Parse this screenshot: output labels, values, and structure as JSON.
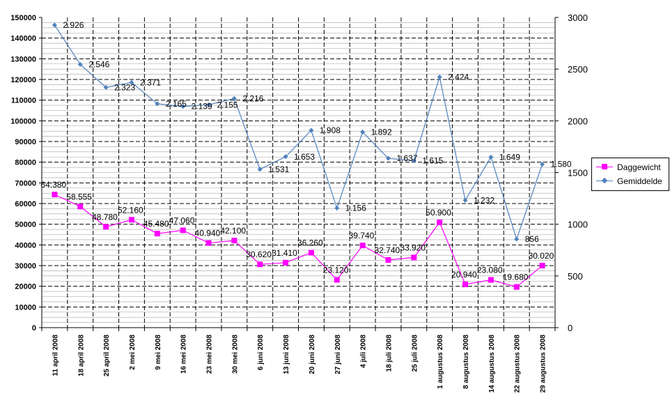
{
  "chart_data": {
    "type": "line",
    "categories": [
      "11 april 2008",
      "18 april 2008",
      "25 april 2008",
      "2 mei 2008",
      "9 mei 2008",
      "16 mei 2008",
      "23 mei 2008",
      "30 mei 2008",
      "6 juni 2008",
      "13 juni 2008",
      "20 juni 2008",
      "27 juni 2008",
      "4 juli 2008",
      "18 juli 2008",
      "25 juli 2008",
      "1 augustus 2008",
      "8 augustus 2008",
      "14 augustus 2008",
      "22 augustus 2008",
      "29 augustus 2008"
    ],
    "series": [
      {
        "name": "Daggewicht",
        "axis": "left",
        "color": "#ff00ff",
        "marker": "square",
        "values": [
          64380,
          58555,
          48780,
          52160,
          45480,
          47060,
          40940,
          42100,
          30620,
          31410,
          36260,
          23120,
          39740,
          32740,
          33920,
          50900,
          20940,
          23080,
          19680,
          30020
        ],
        "labels": [
          "64.380",
          "58.555",
          "48.780",
          "52.160",
          "45.480",
          "47.060",
          "40.940",
          "42.100",
          "30.620",
          "31.410",
          "36.260",
          "23.120",
          "39.740",
          "32.740",
          "33.920",
          "50.900",
          "20.940",
          "23.080",
          "19.680",
          "30.020"
        ]
      },
      {
        "name": "Gemiddelde",
        "axis": "right",
        "color": "#4f81bd",
        "marker": "diamond",
        "values": [
          2926,
          2546,
          2323,
          2371,
          2165,
          2139,
          2155,
          2216,
          1531,
          1653,
          1908,
          1156,
          1892,
          1637,
          1615,
          2424,
          1232,
          1649,
          856,
          1580
        ],
        "labels": [
          "2.926",
          "2.546",
          "2.323",
          "2.371",
          "2.165",
          "2.139",
          "2.155",
          "2.216",
          "1.531",
          "1.653",
          "1.908",
          "1.156",
          "1.892",
          "1.637",
          "1.615",
          "2.424",
          "1.232",
          "1.649",
          "856",
          "1.580"
        ]
      }
    ],
    "left_axis": {
      "ylim": [
        0,
        150000
      ],
      "ticks": [
        0,
        10000,
        20000,
        30000,
        40000,
        50000,
        60000,
        70000,
        80000,
        90000,
        100000,
        110000,
        120000,
        130000,
        140000,
        150000
      ],
      "tick_labels": [
        "0",
        "10000",
        "20000",
        "30000",
        "40000",
        "50000",
        "60000",
        "70000",
        "80000",
        "90000",
        "100000",
        "110000",
        "120000",
        "130000",
        "140000",
        "150000"
      ]
    },
    "right_axis": {
      "ylim": [
        0,
        3000
      ],
      "ticks": [
        0,
        500,
        1000,
        1500,
        2000,
        2500,
        3000
      ],
      "tick_labels": [
        "0",
        "500",
        "1000",
        "1500",
        "2000",
        "2500",
        "3000"
      ]
    },
    "grid": true,
    "legend_position": "right"
  },
  "legend": {
    "items": [
      {
        "label": "Daggewicht",
        "color": "#ff00ff"
      },
      {
        "label": "Gemiddelde",
        "color": "#4f81bd"
      }
    ]
  }
}
